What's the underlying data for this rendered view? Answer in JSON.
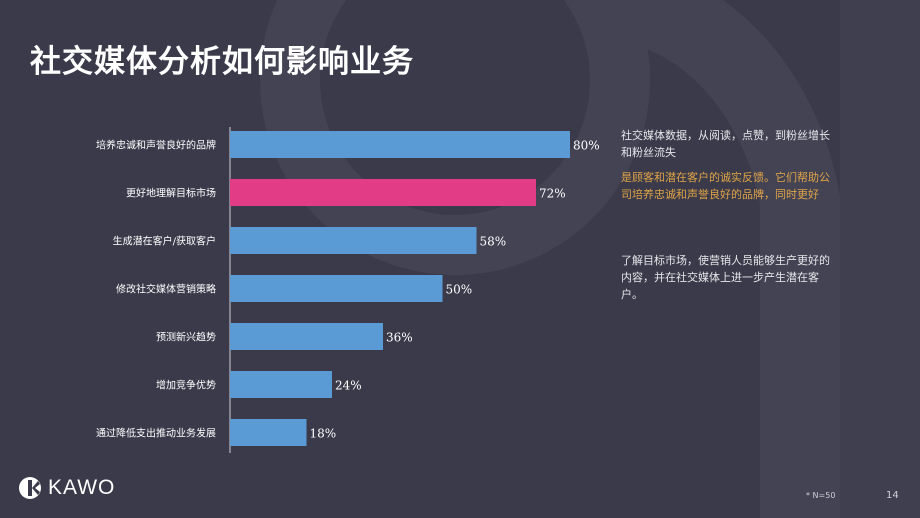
{
  "title": "社交媒体分析如何影响业务",
  "chart_data": {
    "type": "bar",
    "orientation": "horizontal",
    "categories": [
      "培养忠诚和声誉良好的品牌",
      "更好地理解目标市场",
      "生成潜在客户/获取客户",
      "修改社交媒体营销策略",
      "预测新兴趋势",
      "增加竞争优势",
      "通过降低支出推动业务发展"
    ],
    "values": [
      80,
      72,
      58,
      50,
      36,
      24,
      18
    ],
    "value_labels": [
      "80%",
      "72%",
      "58%",
      "50%",
      "36%",
      "24%",
      "18%"
    ],
    "xlim": [
      0,
      100
    ],
    "highlight_index": 1,
    "colors": {
      "bar": "#5b9bd5",
      "highlight": "#e23c86",
      "axis": "#d0d0d8",
      "label": "#ffffff"
    },
    "grid": false
  },
  "notes": [
    {
      "text": "社交媒体数据，从阅读，点赞，到粉丝增长和粉丝流失",
      "color": "white"
    },
    {
      "text": "是顾客和潜在客户的诚实反馈。它们帮助公司培养忠诚和声誉良好的品牌，同时更好",
      "color": "gold"
    },
    {
      "text": "了解目标市场，使营销人员能够生产更好的内容，并在社交媒体上进一步产生潜在客户。",
      "color": "white"
    }
  ],
  "logo_text": "KAWO",
  "footnote": "* N=50",
  "page_number": "14"
}
